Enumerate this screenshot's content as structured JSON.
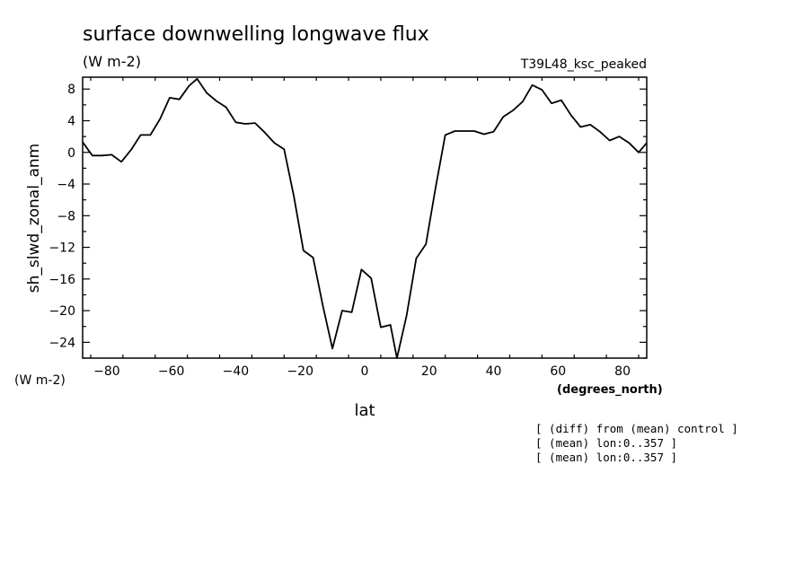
{
  "chart_data": {
    "type": "line",
    "title": "surface downwelling longwave flux",
    "title_units": "(W m-2)",
    "experiment": "T39L48_ksc_peaked",
    "ylabel": "sh_slwd_zonal_anm",
    "ylabel_units": "(W m-2)",
    "xlabel": "lat",
    "xlabel_units": "(degrees_north)",
    "xlim": [
      -87.5,
      87.5
    ],
    "ylim": [
      -26,
      9.5
    ],
    "xticks": [
      -80,
      -60,
      -40,
      -20,
      0,
      20,
      40,
      60,
      80
    ],
    "yticks": [
      8,
      4,
      0,
      -4,
      -8,
      -12,
      -16,
      -20,
      -24
    ],
    "grid": false,
    "notes": [
      "[ (diff) from (mean) control ]",
      "[ (mean) lon:0..357 ]",
      "[ (mean) lon:0..357 ]"
    ],
    "series": [
      {
        "x": [
          -87.5,
          -84.5,
          -81.5,
          -78.5,
          -75.5,
          -72.5,
          -69.5,
          -66.5,
          -63.5,
          -60.5,
          -57.5,
          -54.5,
          -52,
          -49,
          -46,
          -43,
          -40,
          -37,
          -34,
          -31,
          -28,
          -25,
          -22,
          -19,
          -16,
          -13,
          -10,
          -7,
          -4,
          -1,
          2,
          5,
          8,
          10,
          13,
          16,
          19,
          22,
          25,
          28,
          31,
          34,
          37,
          40,
          43,
          46,
          49,
          52,
          55,
          58,
          61,
          64,
          67,
          70,
          73,
          76,
          79,
          82,
          85,
          87.5
        ],
        "values": [
          1.3,
          -0.4,
          -0.4,
          -0.3,
          -1.2,
          0.3,
          2.2,
          2.2,
          4.2,
          6.9,
          6.7,
          8.4,
          9.3,
          7.5,
          6.5,
          5.7,
          3.8,
          3.6,
          3.7,
          2.5,
          1.2,
          0.4,
          -5.5,
          -12.4,
          -13.3,
          -19.3,
          -24.8,
          -20.0,
          -20.2,
          -14.8,
          -15.9,
          -22.1,
          -21.8,
          -26.0,
          -20.6,
          -13.4,
          -11.6,
          -4.5,
          2.2,
          2.7,
          2.7,
          2.7,
          2.3,
          2.6,
          4.5,
          5.3,
          6.4,
          8.5,
          7.9,
          6.2,
          6.6,
          4.7,
          3.2,
          3.5,
          2.6,
          1.5,
          2.0,
          1.2,
          0.0,
          1.2
        ]
      }
    ]
  }
}
